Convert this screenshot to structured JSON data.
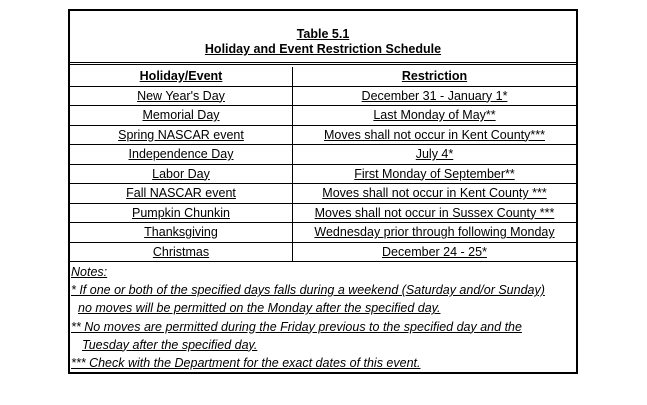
{
  "title": {
    "number": "Table 5.1",
    "name": "Holiday and Event Restriction Schedule"
  },
  "columns": [
    "Holiday/Event",
    "Restriction"
  ],
  "rows": [
    [
      "New Year's Day",
      "December 31 - January 1*"
    ],
    [
      "Memorial Day",
      "Last Monday of May**"
    ],
    [
      "Spring NASCAR event",
      "Moves shall not occur in Kent County***"
    ],
    [
      "Independence Day",
      "July 4*"
    ],
    [
      "Labor Day",
      "First Monday of September**"
    ],
    [
      "Fall NASCAR event",
      "Moves shall not occur in Kent County ***"
    ],
    [
      "Pumpkin Chunkin",
      "Moves shall not occur in Sussex County ***"
    ],
    [
      "Thanksgiving",
      "Wednesday prior through following Monday"
    ],
    [
      "Christmas",
      "December 24 - 25*"
    ]
  ],
  "notes": {
    "heading": "Notes:",
    "lines": [
      "* If one or both of the specified days falls during a weekend (Saturday and/or Sunday)",
      "no moves will be permitted on the Monday after the specified day.",
      "** No moves are permitted during the Friday previous to the specified day and the",
      "Tuesday after the specified day.",
      "*** Check with the Department for the exact dates of this event."
    ]
  }
}
